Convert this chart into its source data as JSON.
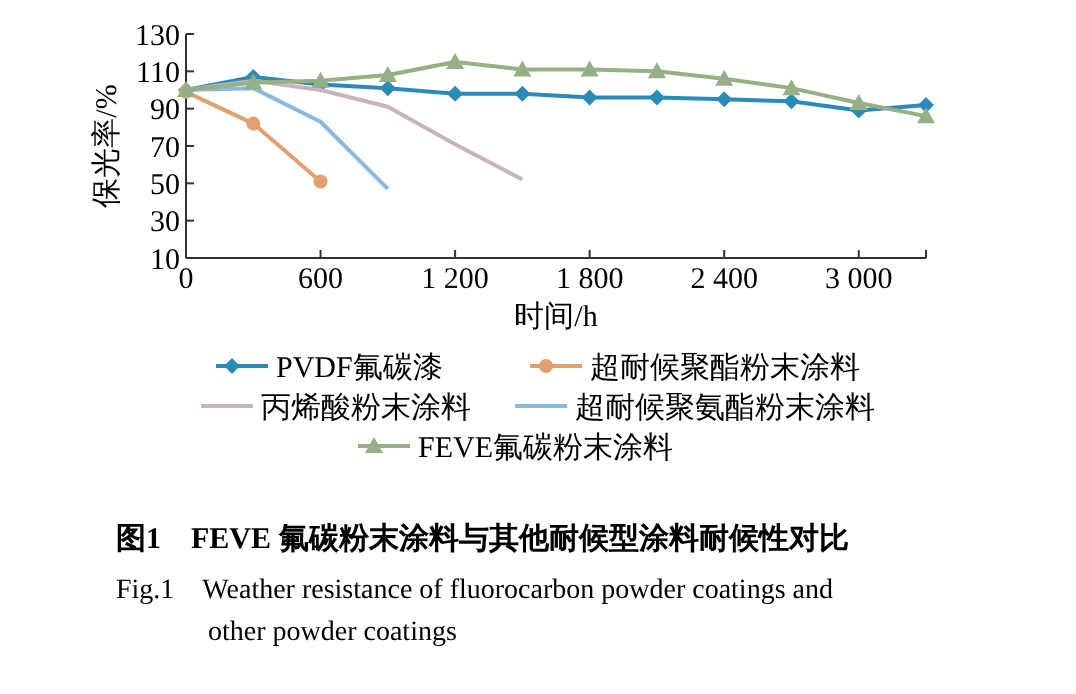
{
  "chart_data": {
    "type": "line",
    "xlabel": "时间/h",
    "ylabel": "保光率/%",
    "xlim": [
      0,
      3300
    ],
    "xticks": [
      0,
      600,
      {
        "value": 1200,
        "label": "1 200"
      },
      {
        "value": 1800,
        "label": "1 800"
      },
      {
        "value": 2400,
        "label": "2 400"
      },
      {
        "value": 3000,
        "label": "3 000"
      },
      {
        "value": 3300,
        "label": null
      }
    ],
    "ylim": [
      10,
      130
    ],
    "yticks": [
      10,
      30,
      50,
      70,
      90,
      110,
      130
    ],
    "grid": false,
    "legend": "bottom",
    "line_style": "solid",
    "series": [
      {
        "name": "PVDF氟碳漆",
        "color": "#2a8ab8",
        "marker": "diamond",
        "x": [
          0,
          300,
          600,
          900,
          1200,
          1500,
          1800,
          2100,
          2400,
          2700,
          3000,
          3300
        ],
        "values": [
          100,
          107,
          103,
          101,
          98,
          98,
          96,
          96,
          95,
          94,
          89,
          92
        ]
      },
      {
        "name": "超耐候聚酯粉末涂料",
        "color": "#e0a070",
        "marker": "circle",
        "x": [
          0,
          300,
          600
        ],
        "values": [
          99,
          82,
          51
        ]
      },
      {
        "name": "丙烯酸粉末涂料",
        "color": "#c8b4b8",
        "marker": "none",
        "x": [
          0,
          300,
          600,
          900,
          1200,
          1500
        ],
        "values": [
          100,
          105,
          100,
          91,
          71,
          52
        ]
      },
      {
        "name": "超耐候聚氨酯粉末涂料",
        "color": "#8ab8e0",
        "marker": "none",
        "x": [
          0,
          300,
          600,
          900
        ],
        "values": [
          100,
          101,
          83,
          47
        ]
      },
      {
        "name": "FEVE氟碳粉末涂料",
        "color": "#94b084",
        "marker": "triangle",
        "x": [
          0,
          300,
          600,
          900,
          1200,
          1500,
          1800,
          2100,
          2400,
          2700,
          3000,
          3300
        ],
        "values": [
          100,
          104,
          105,
          108,
          115,
          111,
          111,
          110,
          106,
          101,
          93,
          86
        ]
      }
    ],
    "annotations": [
      "图1　FEVE 氟碳粉末涂料与其他耐候型涂料耐候性对比",
      "Fig.1　Weather resistance of fluorocarbon powder coatings and other powder coatings"
    ]
  }
}
